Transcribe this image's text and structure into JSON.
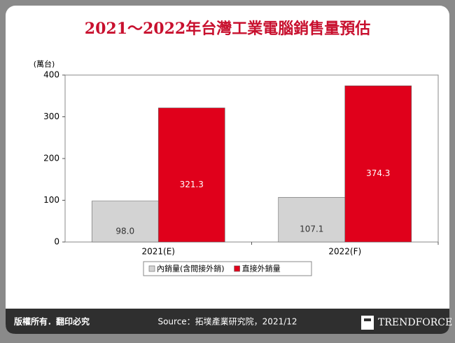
{
  "chart_data": {
    "type": "bar",
    "title": "2021～2022年台灣工業電腦銷售量預估",
    "y_label": "(萬台)",
    "categories": [
      "2021(E)",
      "2022(F)"
    ],
    "series": [
      {
        "name": "內銷量(含間接外銷)",
        "color": "#d3d3d3",
        "values": [
          98.0,
          107.1
        ],
        "value_labels": [
          "98.0",
          "107.1"
        ]
      },
      {
        "name": "直接外銷量",
        "color": "#e0001b",
        "values": [
          321.3,
          374.3
        ],
        "value_labels": [
          "321.3",
          "374.3"
        ]
      }
    ],
    "ylim": [
      0,
      400
    ],
    "yticks": [
      0,
      100,
      200,
      300,
      400
    ],
    "grid": false,
    "legend": "bottom"
  },
  "footer": {
    "copyright": "版權所有．翻印必究",
    "source": "Source：拓墣產業研究院，2021/12",
    "brand": "TRENDFORCE"
  }
}
